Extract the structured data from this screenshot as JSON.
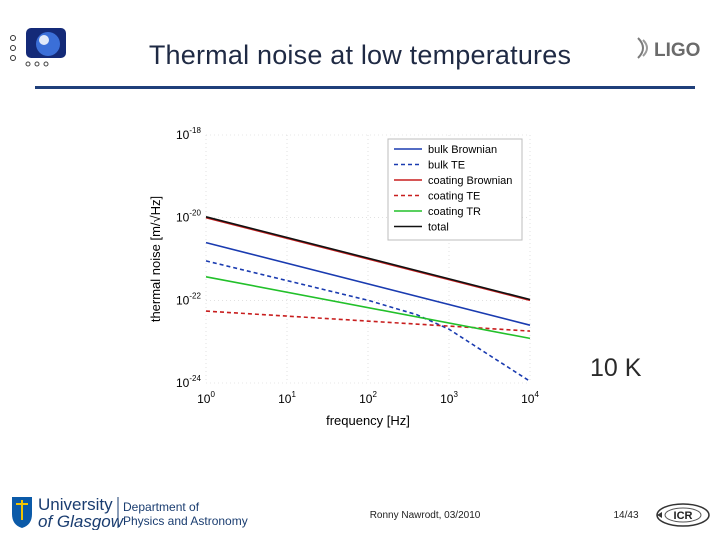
{
  "slide": {
    "title": "Thermal noise at low temperatures",
    "annotation": "10 K",
    "footer_author": "Ronny Nawrodt, 03/2010",
    "page_number": "14/43",
    "colors": {
      "title": "#1f2a44",
      "rule": "#1f3f7a",
      "background": "#ffffff"
    }
  },
  "logos": {
    "geo": {
      "icon": "geo-logo-icon"
    },
    "ligo": {
      "icon": "ligo-logo-icon",
      "text": "LIGO"
    },
    "uog": {
      "icon": "uog-crest-icon",
      "line1": "University",
      "line2": "of Glasgow",
      "dept1": "Department of",
      "dept2": "Physics and Astronomy"
    },
    "icr": {
      "icon": "icr-logo-icon",
      "text": "ICR"
    }
  },
  "chart_data": {
    "type": "line",
    "title": "",
    "xlabel": "frequency [Hz]",
    "ylabel": "thermal noise [m/√Hz]",
    "xscale": "log",
    "yscale": "log",
    "xlim": [
      1,
      10000
    ],
    "ylim": [
      1e-24,
      1e-18
    ],
    "x_ticks": [
      {
        "base": "10",
        "exp": "0",
        "value": 1
      },
      {
        "base": "10",
        "exp": "1",
        "value": 10
      },
      {
        "base": "10",
        "exp": "2",
        "value": 100
      },
      {
        "base": "10",
        "exp": "3",
        "value": 1000
      },
      {
        "base": "10",
        "exp": "4",
        "value": 10000
      }
    ],
    "y_ticks": [
      {
        "base": "10",
        "exp": "-18",
        "value": 1e-18
      },
      {
        "base": "10",
        "exp": "-20",
        "value": 1e-20
      },
      {
        "base": "10",
        "exp": "-22",
        "value": 1e-22
      },
      {
        "base": "10",
        "exp": "-24",
        "value": 1e-24
      }
    ],
    "legend_position": "top-right",
    "series": [
      {
        "name": "bulk Brownian",
        "color": "#1a3bb0",
        "dash": "solid",
        "x": [
          1,
          10000
        ],
        "y": [
          2.5e-21,
          2.5e-23
        ]
      },
      {
        "name": "bulk TE",
        "color": "#1a3bb0",
        "dash": "dashed",
        "x": [
          1,
          10,
          100,
          400,
          1000,
          3000,
          10000
        ],
        "y": [
          9e-22,
          3e-22,
          1e-22,
          4.5e-23,
          2e-23,
          5e-24,
          1.1e-24
        ]
      },
      {
        "name": "coating Brownian",
        "color": "#c81e1e",
        "dash": "solid",
        "x": [
          1,
          10000
        ],
        "y": [
          1e-20,
          1e-22
        ]
      },
      {
        "name": "coating TE",
        "color": "#c81e1e",
        "dash": "dashed",
        "x": [
          1,
          10000
        ],
        "y": [
          5.5e-23,
          1.8e-23
        ]
      },
      {
        "name": "coating TR",
        "color": "#22c02a",
        "dash": "solid",
        "x": [
          1,
          10000
        ],
        "y": [
          3.7e-22,
          1.2e-23
        ]
      },
      {
        "name": "total",
        "color": "#111111",
        "dash": "solid",
        "x": [
          1,
          10000
        ],
        "y": [
          1.05e-20,
          1.05e-22
        ]
      }
    ]
  }
}
